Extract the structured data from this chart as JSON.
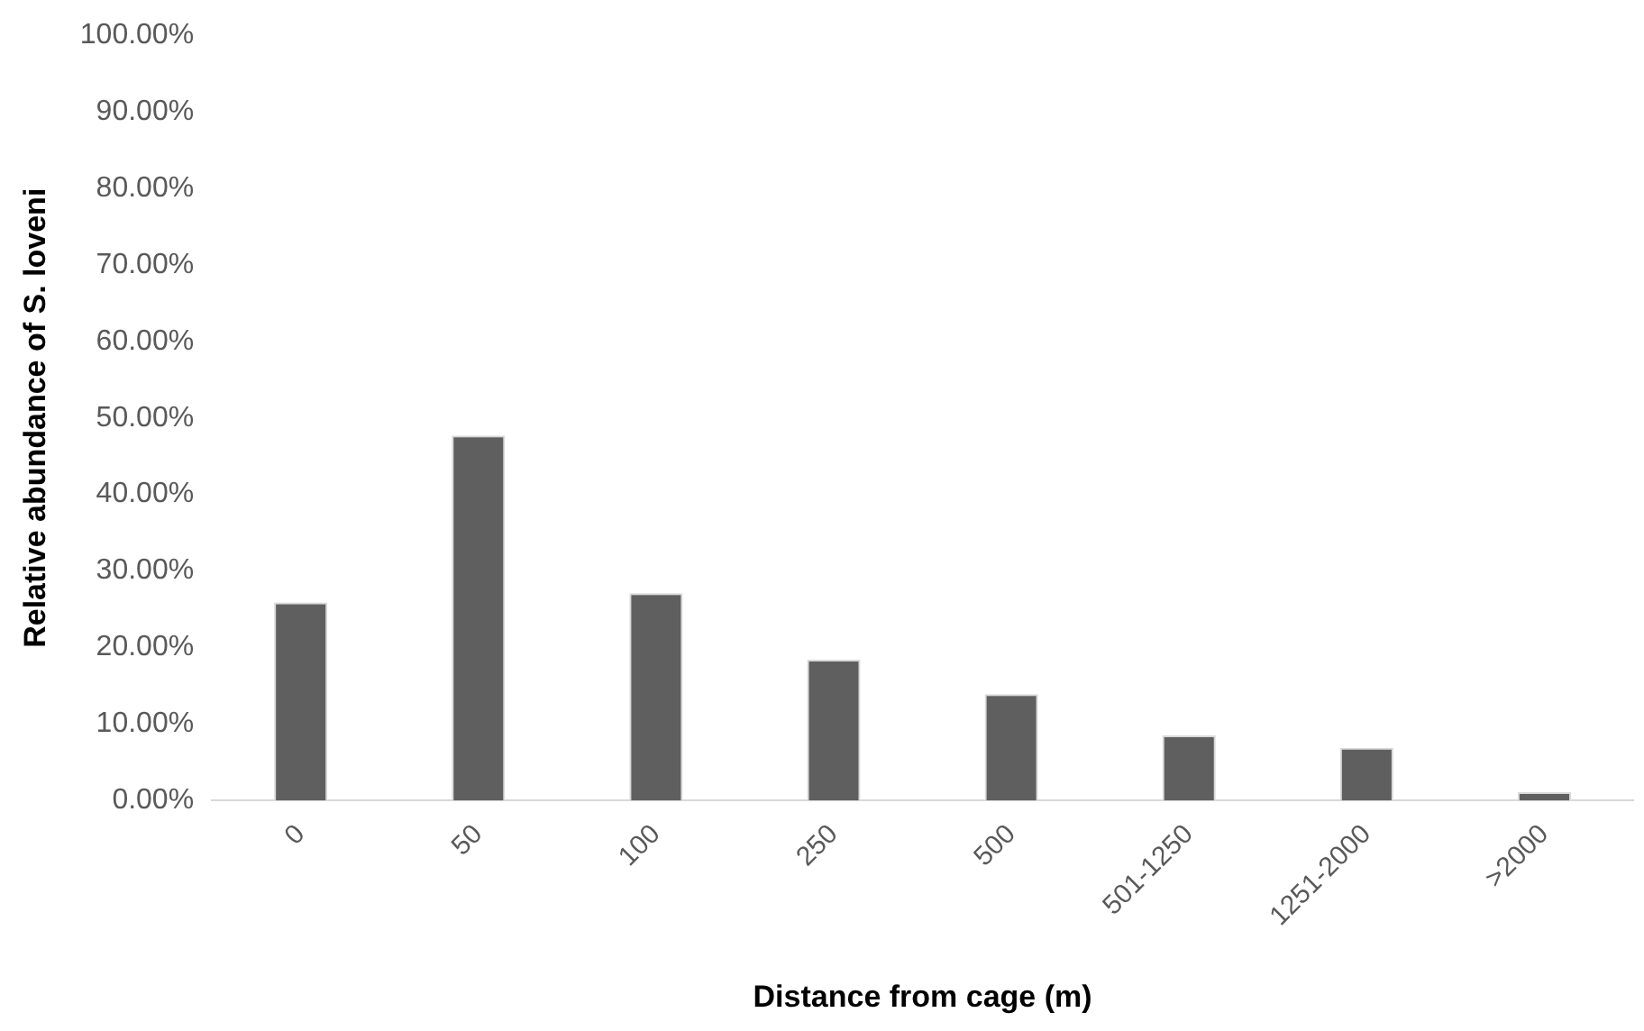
{
  "chart_data": {
    "type": "bar",
    "xlabel": "Distance from cage (m)",
    "ylabel": "Relative abundance of S. loveni",
    "categories": [
      "0",
      "50",
      "100",
      "250",
      "500",
      "501-1250",
      "1251-2000",
      ">2000"
    ],
    "values": [
      25.9,
      47.7,
      27.1,
      18.4,
      13.9,
      8.5,
      6.9,
      1.1
    ],
    "color": "#5f5f5f",
    "ylim": [
      0,
      100
    ],
    "yticks": [
      {
        "value": 0,
        "label": "0.00%"
      },
      {
        "value": 10,
        "label": "10.00%"
      },
      {
        "value": 20,
        "label": "20.00%"
      },
      {
        "value": 30,
        "label": "30.00%"
      },
      {
        "value": 40,
        "label": "40.00%"
      },
      {
        "value": 50,
        "label": "50.00%"
      },
      {
        "value": 60,
        "label": "60.00%"
      },
      {
        "value": 70,
        "label": "70.00%"
      },
      {
        "value": 80,
        "label": "80.00%"
      },
      {
        "value": 90,
        "label": "90.00%"
      },
      {
        "value": 100,
        "label": "100.00%"
      }
    ],
    "grid": false,
    "legend": false
  }
}
